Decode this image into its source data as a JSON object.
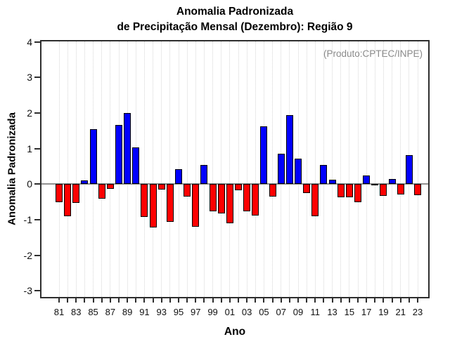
{
  "title": {
    "line1": "Anomalia Padronizada",
    "line2": "de Precipitação Mensal (Dezembro): Região 9"
  },
  "annotation": "(Produto:CPTEC/INPE)",
  "axes": {
    "x_label": "Ano",
    "y_label": "Anomalia Padronizada",
    "y_tick_labels": [
      "4",
      "3",
      "2",
      "1",
      "0",
      "-1",
      "-2",
      "-3"
    ],
    "x_tick_labels": [
      "81",
      "83",
      "85",
      "87",
      "89",
      "91",
      "93",
      "95",
      "97",
      "99",
      "01",
      "03",
      "05",
      "07",
      "09",
      "11",
      "13",
      "15",
      "17",
      "19",
      "21",
      "23"
    ]
  },
  "colors": {
    "positive": "#0000ff",
    "negative": "#ff0000",
    "bar_border": "#000000",
    "zero_line": "#919191",
    "grid": "#d6d6d6",
    "axis": "#2e2e2e",
    "annotation_text": "#8a8a8a"
  },
  "chart_data": {
    "type": "bar",
    "title": "Anomalia Padronizada de Precipitação Mensal (Dezembro): Região 9",
    "xlabel": "Ano",
    "ylabel": "Anomalia Padronizada",
    "ylim": [
      -3,
      4
    ],
    "y_ticks": [
      4,
      3,
      2,
      1,
      0,
      -1,
      -2,
      -3
    ],
    "grid": "vertical-dotted",
    "legend": "none",
    "categories": [
      "81",
      "82",
      "83",
      "84",
      "85",
      "86",
      "87",
      "88",
      "89",
      "90",
      "91",
      "92",
      "93",
      "94",
      "95",
      "96",
      "97",
      "98",
      "99",
      "00",
      "01",
      "02",
      "03",
      "04",
      "05",
      "06",
      "07",
      "08",
      "09",
      "10",
      "11",
      "12",
      "13",
      "14",
      "15",
      "16",
      "17",
      "18",
      "19",
      "20",
      "21",
      "22",
      "23"
    ],
    "values": [
      -0.51,
      -0.9,
      -0.54,
      0.1,
      1.53,
      -0.41,
      -0.14,
      1.66,
      2.0,
      1.03,
      -0.92,
      -1.22,
      -0.16,
      -1.06,
      0.42,
      -0.35,
      -1.2,
      0.54,
      -0.76,
      -0.82,
      -1.1,
      -0.17,
      -0.77,
      -0.89,
      1.61,
      -0.35,
      0.85,
      1.94,
      0.71,
      -0.26,
      -0.9,
      0.53,
      0.11,
      -0.37,
      -0.38,
      -0.52,
      0.23,
      -0.02,
      -0.34,
      0.14,
      -0.3,
      0.81,
      -0.32
    ],
    "series_note": "positive anomalies blue, negative anomalies red"
  }
}
